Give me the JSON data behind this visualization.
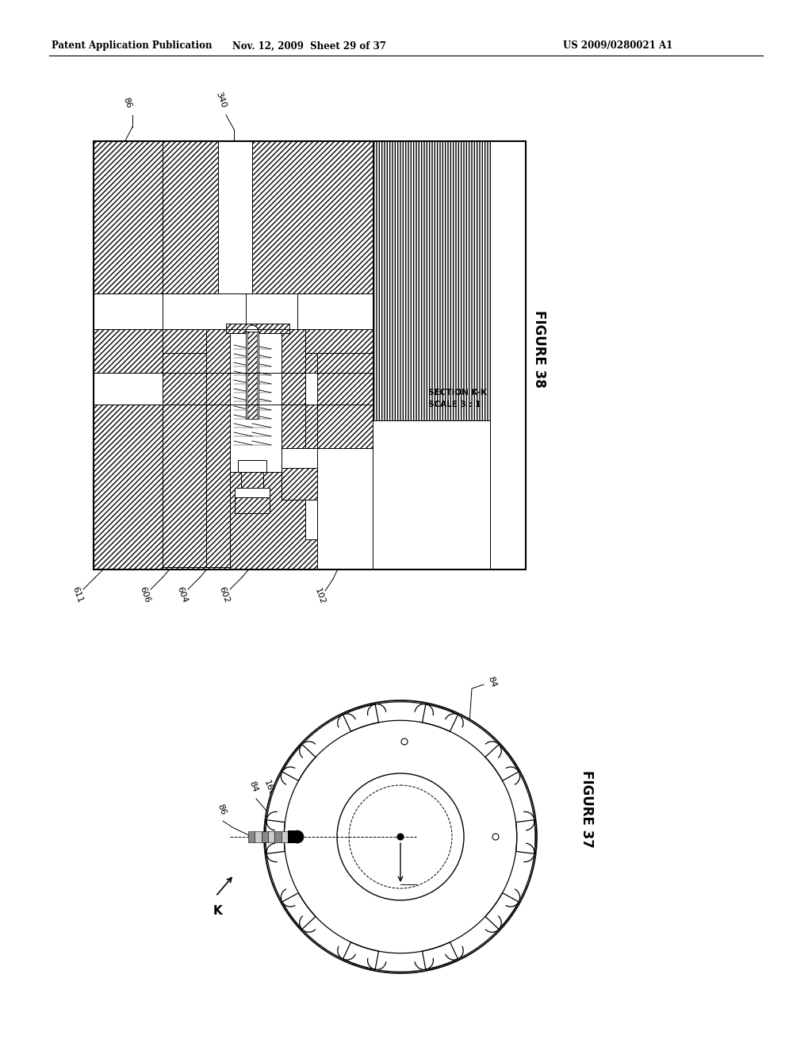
{
  "header_left": "Patent Application Publication",
  "header_mid": "Nov. 12, 2009  Sheet 29 of 37",
  "header_right": "US 2009/0280021 A1",
  "fig38_title": "FIGURE 38",
  "fig37_title": "FIGURE 37",
  "bg_color": "#ffffff"
}
